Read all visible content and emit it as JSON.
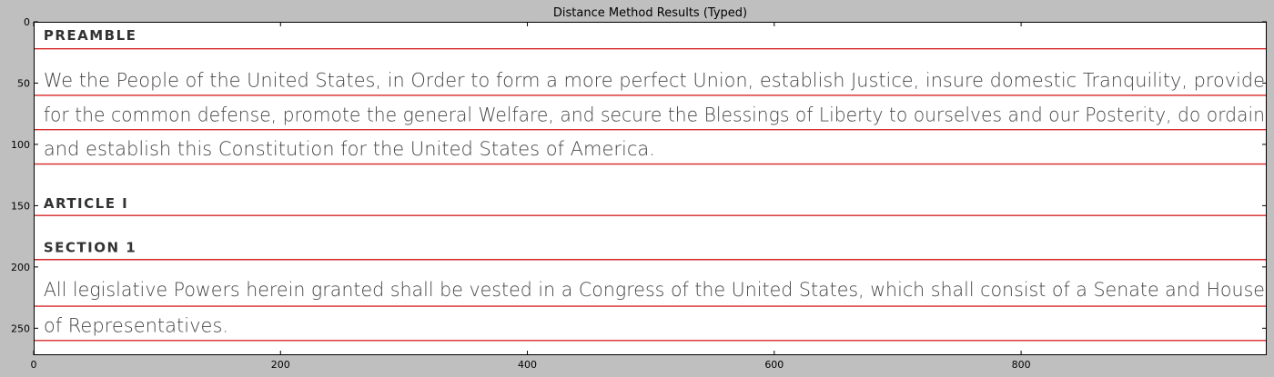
{
  "chart_data": {
    "type": "line",
    "title": "Distance Method Results (Typed)",
    "xlabel": "",
    "ylabel": "",
    "xlim": [
      0,
      999
    ],
    "ylim": [
      272,
      0
    ],
    "x_ticks": [
      0,
      200,
      400,
      600,
      800
    ],
    "y_ticks": [
      0,
      50,
      100,
      150,
      200,
      250
    ],
    "x_tick_labels": [
      "0",
      "200",
      "400",
      "600",
      "800"
    ],
    "y_tick_labels": [
      "0",
      "50",
      "100",
      "150",
      "200",
      "250"
    ],
    "grid": false,
    "series": [
      {
        "color": "#d62728",
        "values": [
          22,
          60,
          88,
          116,
          158,
          194,
          232,
          260
        ]
      }
    ],
    "background_text": [
      {
        "text": "PREAMBLE",
        "y": 15,
        "style": "heading"
      },
      {
        "text": "We the People of the United States, in Order to form a more perfect Union, establish Justice, insure domestic Tranquility, provide",
        "y": 53,
        "style": "body"
      },
      {
        "text": "for the common defense, promote the general Welfare, and secure the Blessings of Liberty to ourselves and our Posterity, do ordain",
        "y": 81,
        "style": "body"
      },
      {
        "text": "and establish this Constitution for the United States of America.",
        "y": 109,
        "style": "body"
      },
      {
        "text": "ARTICLE I",
        "y": 152,
        "style": "heading"
      },
      {
        "text": "SECTION 1",
        "y": 188,
        "style": "heading"
      },
      {
        "text": "All legislative Powers herein granted shall be vested in a Congress of the United States, which shall consist of a Senate and House",
        "y": 224,
        "style": "body"
      },
      {
        "text": "of Representatives.",
        "y": 253,
        "style": "body"
      }
    ]
  }
}
